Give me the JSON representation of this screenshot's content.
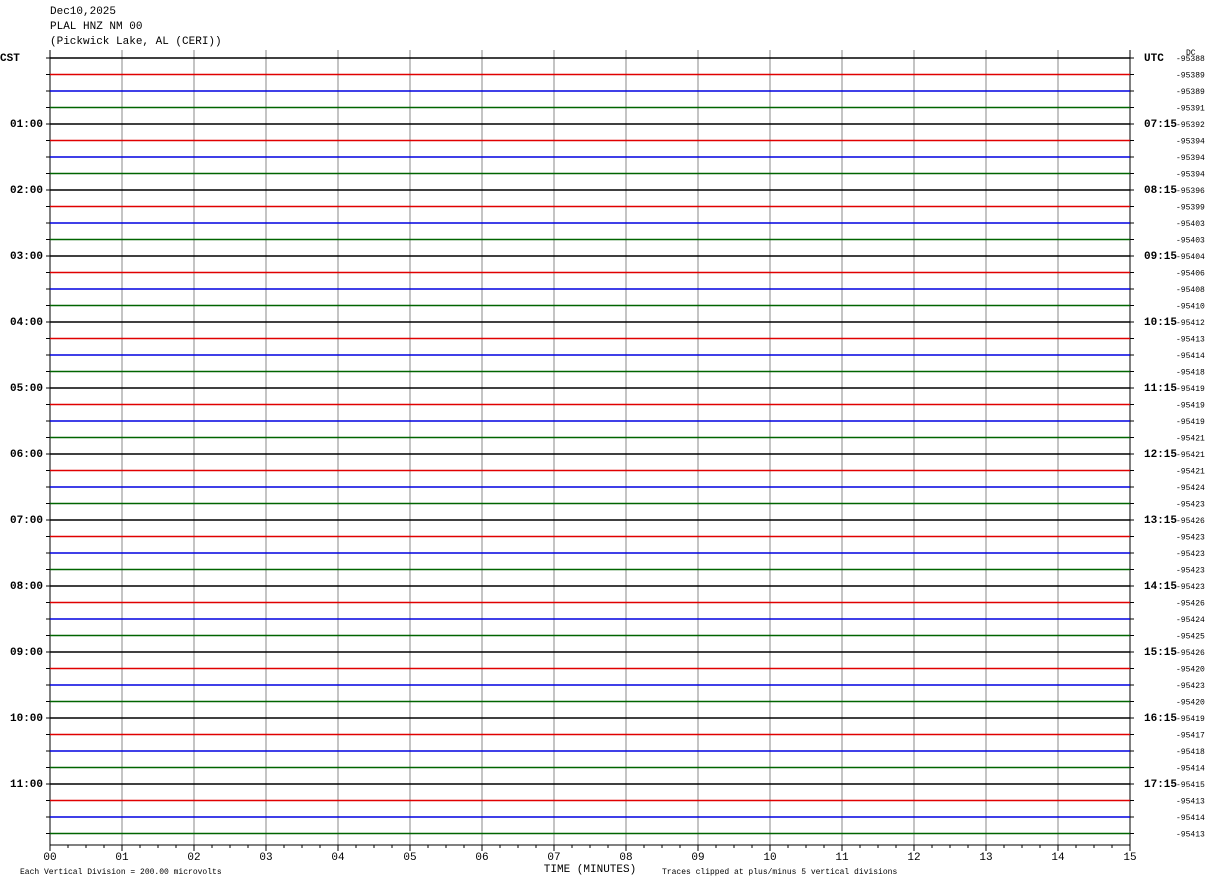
{
  "chart_data": {
    "type": "helicorder",
    "title": "Dec10,2025",
    "subtitle": "PLAL HNZ NM 00",
    "location": "(Pickwick Lake, AL (CERI))",
    "x_label": "TIME (MINUTES)",
    "scale_note": "Each Vertical Division =  200.00 microvolts",
    "clip_note": "Traces clipped at plus/minus 5 vertical divisions",
    "dc_label": "DC",
    "left_labels": [
      "CST",
      "01:00",
      "02:00",
      "03:00",
      "04:00",
      "05:00",
      "06:00",
      "07:00",
      "08:00",
      "09:00",
      "10:00",
      "11:00"
    ],
    "right_labels": [
      "UTC",
      "07:15",
      "08:15",
      "09:15",
      "10:15",
      "11:15",
      "12:15",
      "13:15",
      "14:15",
      "15:15",
      "16:15",
      "17:15"
    ],
    "colors": [
      "#000000",
      "#e00000",
      "#0000e0",
      "#006400"
    ],
    "dc_values": [
      -95388,
      -95389,
      -95389,
      -95391,
      -95392,
      -95394,
      -95394,
      -95394,
      -95396,
      -95399,
      -95403,
      -95403,
      -95404,
      -95406,
      -95408,
      -95410,
      -95412,
      -95413,
      -95414,
      -95418,
      -95419,
      -95419,
      -95419,
      -95421,
      -95421,
      -95421,
      -95424,
      -95423,
      -95426,
      -95423,
      -95423,
      -95423,
      -95423,
      -95426,
      -95424,
      -95425,
      -95426,
      -95420,
      -95423,
      -95420,
      -95419,
      -95417,
      -95418,
      -95414,
      -95415,
      -95413,
      -95414,
      -95413
    ],
    "xlim": [
      0,
      15
    ],
    "xticks": [
      {
        "value": 0,
        "label": "00"
      },
      {
        "value": 1,
        "label": "01"
      },
      {
        "value": 2,
        "label": "02"
      },
      {
        "value": 3,
        "label": "03"
      },
      {
        "value": 4,
        "label": "04"
      },
      {
        "value": 5,
        "label": "05"
      },
      {
        "value": 6,
        "label": "06"
      },
      {
        "value": 7,
        "label": "07"
      },
      {
        "value": 8,
        "label": "08"
      },
      {
        "value": 9,
        "label": "09"
      },
      {
        "value": 10,
        "label": "10"
      },
      {
        "value": 11,
        "label": "11"
      },
      {
        "value": 12,
        "label": "12"
      },
      {
        "value": 13,
        "label": "13"
      },
      {
        "value": 14,
        "label": "14"
      },
      {
        "value": 15,
        "label": "15"
      }
    ],
    "grid": true
  }
}
